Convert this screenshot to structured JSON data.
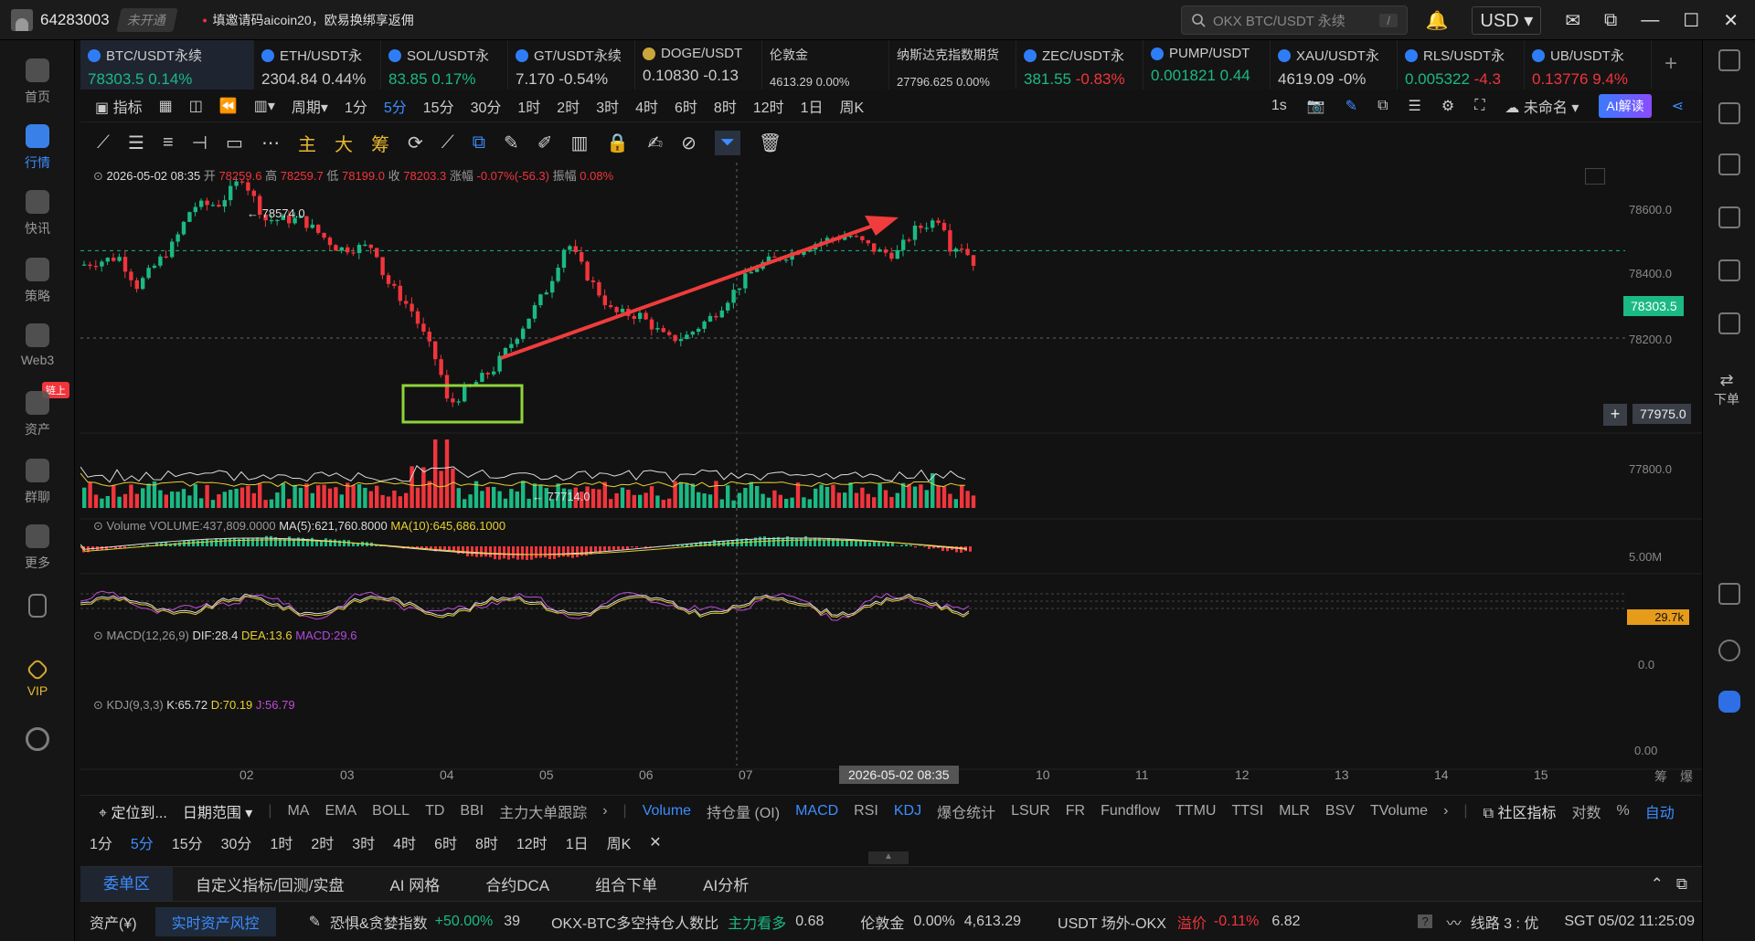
{
  "titlebar": {
    "user_id": "64283003",
    "status": "未开通",
    "promo": "填邀请码aicoin20，欧易换绑享返佣",
    "search_placeholder": "OKX BTC/USDT 永续",
    "search_shortcut": "/",
    "currency": "USD"
  },
  "sidebar": {
    "items": [
      {
        "label": "首页"
      },
      {
        "label": "行情"
      },
      {
        "label": "快讯"
      },
      {
        "label": "策略"
      },
      {
        "label": "Web3"
      },
      {
        "label": "资产",
        "badge": "链上"
      },
      {
        "label": "群聊"
      },
      {
        "label": "更多"
      },
      {
        "label": "VIP"
      }
    ]
  },
  "tickers": [
    {
      "name": "BTC/USDT永续",
      "price": "78303.5",
      "change": "0.14%"
    },
    {
      "name": "ETH/USDT永",
      "price": "2304.84",
      "change": "0.44%"
    },
    {
      "name": "SOL/USDT永",
      "price": "83.85",
      "change": "0.17%"
    },
    {
      "name": "GT/USDT永续",
      "price": "7.170",
      "change": "-0.54%"
    },
    {
      "name": "DOGE/USDT",
      "price": "0.10830",
      "change": "-0.13"
    },
    {
      "name": "伦敦金",
      "price": "4613.29",
      "change": "0.00%"
    },
    {
      "name": "纳斯达克指数期货",
      "price": "27796.625",
      "change": "0.00%"
    },
    {
      "name": "ZEC/USDT永",
      "price": "381.55",
      "change": "-0.83%"
    },
    {
      "name": "PUMP/USDT",
      "price": "0.001821",
      "change": "0.44"
    },
    {
      "name": "XAU/USDT永",
      "price": "4619.09",
      "change": "-0%"
    },
    {
      "name": "RLS/USDT永",
      "price": "0.005322",
      "change": "-4.3"
    },
    {
      "name": "UB/USDT永",
      "price": "0.13776",
      "change": "9.4%"
    }
  ],
  "toolbar1": {
    "indicator": "指标",
    "period": "周期",
    "timeframes": [
      "1分",
      "5分",
      "15分",
      "30分",
      "1时",
      "2时",
      "3时",
      "4时",
      "6时",
      "8时",
      "12时",
      "1日",
      "周K"
    ],
    "active_timeframe": "5分",
    "speed": "1s",
    "layout_name": "未命名",
    "ai_button": "AI解读"
  },
  "toolbar2": {
    "labels": [
      "主",
      "大",
      "筹"
    ]
  },
  "candle_info": {
    "datetime": "2026-05-02 08:35",
    "open_label": "开",
    "open": "78259.6",
    "high_label": "高",
    "high": "78259.7",
    "low_label": "低",
    "low": "78199.0",
    "close_label": "收",
    "close": "78203.3",
    "change_label": "涨幅",
    "change": "-0.07%(-56.3)",
    "amp_label": "振幅",
    "amp": "0.08%"
  },
  "price_axis": {
    "ticks": [
      "78600.0",
      "78400.0",
      "78200.0",
      "77800.0"
    ],
    "current": "78303.5",
    "crosshair": "77975.0"
  },
  "annotations": {
    "high_mark": "← 78574.0",
    "low_mark": "← 77714.0"
  },
  "volume": {
    "label": "Volume",
    "vol": "VOLUME:437,809.0000",
    "ma5": "MA(5):621,760.8000",
    "ma10": "MA(10):645,686.1000",
    "axis_top": "5.00M",
    "current": "29.7k"
  },
  "macd": {
    "label": "MACD(12,26,9)",
    "dif": "DIF:28.4",
    "dea": "DEA:13.6",
    "macd": "MACD:29.6",
    "axis": "0.0"
  },
  "kdj": {
    "label": "KDJ(9,3,3)",
    "k": "K:65.72",
    "d": "D:70.19",
    "j": "J:56.79",
    "axis": "0.00"
  },
  "date_axis": {
    "ticks": [
      "02",
      "03",
      "04",
      "05",
      "06",
      "07",
      "10",
      "11",
      "12",
      "13",
      "14",
      "15"
    ],
    "crosshair": "2026-05-02 08:35",
    "right_icons": [
      "筹",
      "爆"
    ]
  },
  "indicator_bar": {
    "locate": "定位到...",
    "range": "日期范围",
    "main_inds": [
      "MA",
      "EMA",
      "BOLL",
      "TD",
      "BBI",
      "主力大单跟踪"
    ],
    "sub_inds": [
      "Volume",
      "持仓量 (OI)",
      "MACD",
      "RSI",
      "KDJ",
      "爆仓统计",
      "LSUR",
      "FR",
      "Fundflow",
      "TTMU",
      "TTSI",
      "MLR",
      "BSV",
      "TVolume"
    ],
    "community": "社区指标",
    "log": "对数",
    "pct": "%",
    "auto": "自动"
  },
  "tf_bar": [
    "1分",
    "5分",
    "15分",
    "30分",
    "1时",
    "2时",
    "3时",
    "4时",
    "6时",
    "8时",
    "12时",
    "1日",
    "周K"
  ],
  "bottom_tabs": [
    "委单区",
    "自定义指标/回测/实盘",
    "AI 网格",
    "合约DCA",
    "组合下单",
    "AI分析"
  ],
  "status_bar": {
    "assets": "资产(¥)",
    "risk": "实时资产风控",
    "fear_label": "恐惧&贪婪指数",
    "fear_change": "+50.00%",
    "fear_value": "39",
    "ratio_label": "OKX-BTC多空持仓人数比",
    "ratio_tag": "主力看多",
    "ratio_value": "0.68",
    "gold_label": "伦敦金",
    "gold_change": "0.00%",
    "gold_value": "4,613.29",
    "usdt_label": "USDT 场外-OKX",
    "premium_label": "溢价",
    "premium_value": "-0.11%",
    "usdt_value": "6.82",
    "line": "线路 3 : 优",
    "time": "SGT 05/02 11:25:09"
  },
  "colors": {
    "up": "#1bb983",
    "down": "#f0353c",
    "accent": "#3d8dff",
    "arrow": "#f03c3c",
    "highlight": "#8fd43a"
  }
}
